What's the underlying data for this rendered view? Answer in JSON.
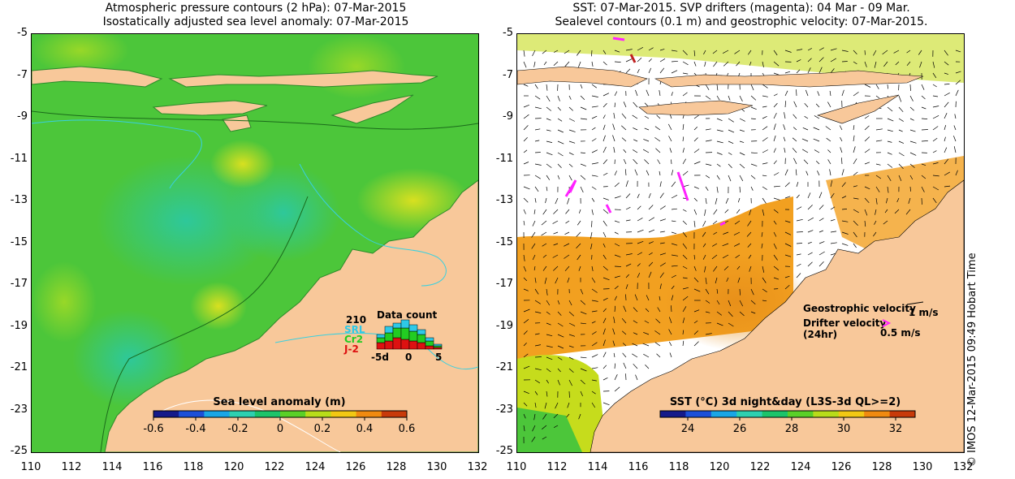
{
  "left_panel": {
    "title_line1": "Atmospheric pressure contours (2 hPa): 07-Mar-2015",
    "title_line2": "Isostatically adjusted sea level anomaly: 07-Mar-2015",
    "colorbar": {
      "title": "Sea level anomaly (m)",
      "ticks": [
        "-0.6",
        "-0.4",
        "-0.2",
        "0",
        "0.2",
        "0.4",
        "0.6"
      ],
      "colors": [
        "#151a8a",
        "#1c4fd8",
        "#1aa6e6",
        "#2ed0b0",
        "#1cc46a",
        "#5ad028",
        "#b8dc1a",
        "#f2c814",
        "#f08a10",
        "#c83a0a"
      ]
    },
    "data_count": {
      "title": "Data count",
      "total": "210",
      "satellites": [
        {
          "name": "SRL",
          "color": "#2ec9e8"
        },
        {
          "name": "Cr2",
          "color": "#22cc22"
        },
        {
          "name": "J-2",
          "color": "#dd1111"
        }
      ],
      "axis_labels": [
        "-5d",
        "0",
        "5"
      ]
    }
  },
  "right_panel": {
    "title_line1": "SST: 07-Mar-2015. SVP drifters (magenta): 04 Mar - 09 Mar.",
    "title_line2": "Sealevel contours (0.1 m) and geostrophic velocity: 07-Mar-2015.",
    "colorbar": {
      "title": "SST (°C) 3d night&day (L3S-3d QL>=2)",
      "ticks": [
        "24",
        "26",
        "28",
        "30",
        "32"
      ],
      "colors": [
        "#151a8a",
        "#1c4fd8",
        "#1aa6e6",
        "#2ed0b0",
        "#1cc46a",
        "#5ad028",
        "#b8dc1a",
        "#f2c814",
        "#f08a10",
        "#c83a0a"
      ]
    },
    "legend": {
      "geostrophic_label": "Geostrophic velocity",
      "geostrophic_scale": "1 m/s",
      "drifter_label_line1": "Drifter velocity",
      "drifter_label_line2": "(24hr)",
      "drifter_scale": "0.5 m/s"
    }
  },
  "axes": {
    "y_ticks": [
      "-5",
      "-7",
      "-9",
      "-11",
      "-13",
      "-15",
      "-17",
      "-19",
      "-21",
      "-23",
      "-25"
    ],
    "x_ticks": [
      "110",
      "112",
      "114",
      "116",
      "118",
      "120",
      "122",
      "124",
      "126",
      "128",
      "130",
      "132"
    ]
  },
  "credit": "© IMOS 12-Mar-2015 09:49 Hobart Time",
  "colors": {
    "land": "#f8c89a",
    "ocean_sla": "#4cc63a",
    "sst_cool": "#c6dc1c",
    "sst_warm": "#f2a020",
    "drifter": "#ff22ff"
  }
}
